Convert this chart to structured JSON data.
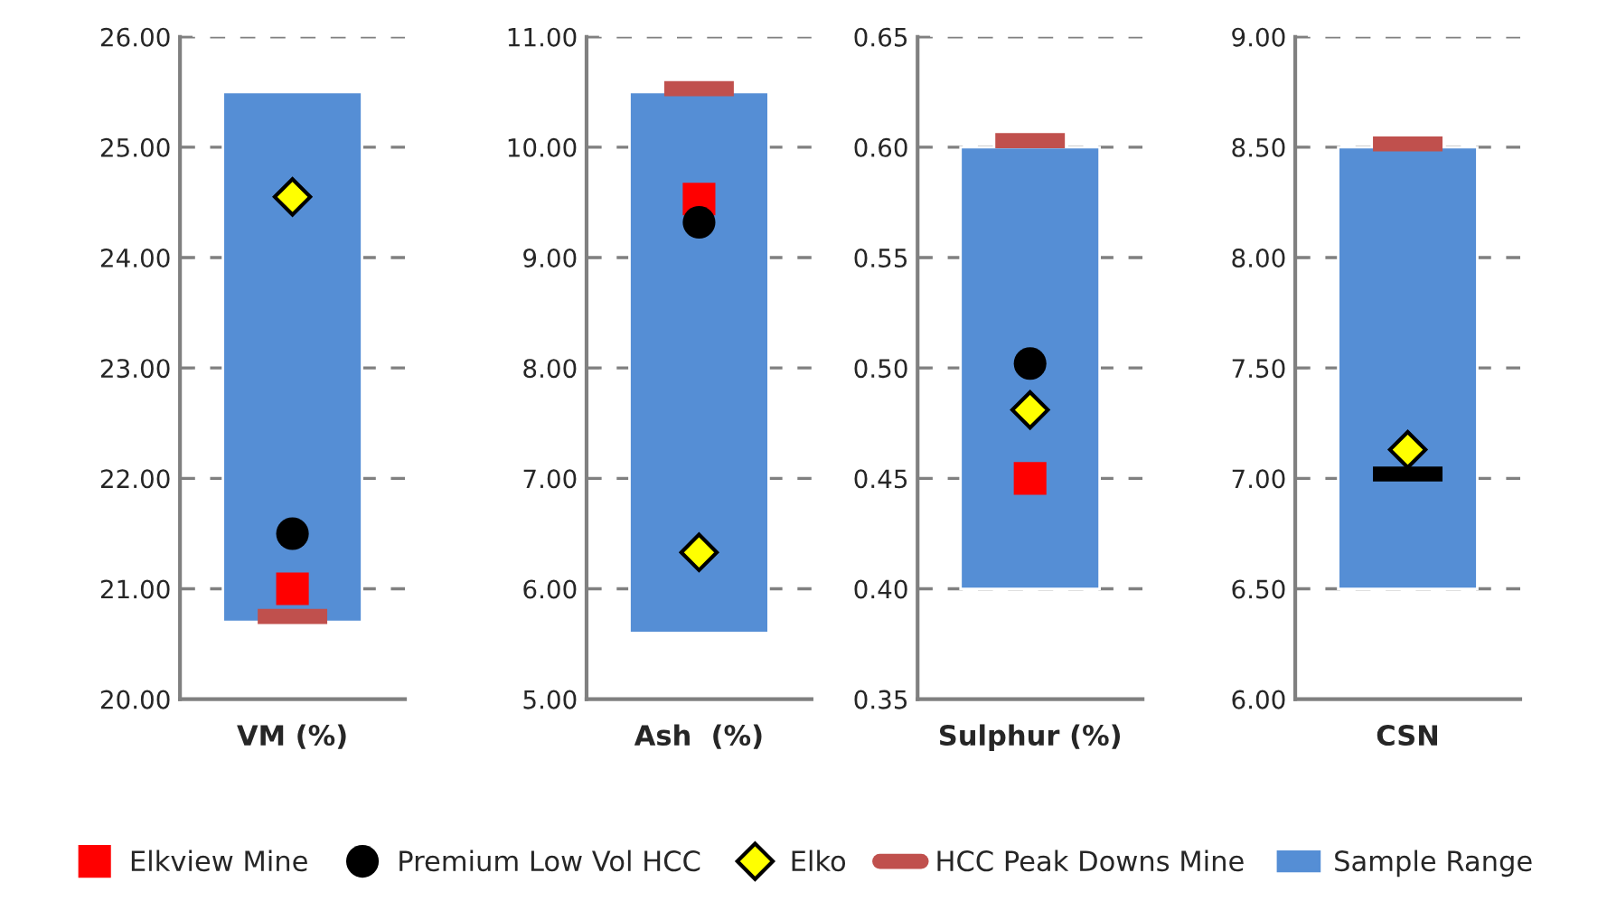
{
  "chart_data": [
    {
      "type": "bar",
      "categories": [
        "VM (%)"
      ],
      "ylim": [
        20,
        26
      ],
      "yticks": [
        {
          "value": 20,
          "label": "20.00"
        },
        {
          "value": 21,
          "label": "21.00"
        },
        {
          "value": 22,
          "label": "22.00"
        },
        {
          "value": 23,
          "label": "23.00"
        },
        {
          "value": 24,
          "label": "24.00"
        },
        {
          "value": 25,
          "label": "25.00"
        },
        {
          "value": 26,
          "label": "26.00"
        }
      ],
      "grid": "y",
      "legend": "bottom",
      "series": [
        {
          "name": "Sample Range",
          "color": "#558ed5",
          "base": [
            20.7
          ],
          "values": [
            4.8
          ]
        },
        {
          "name": "Elkview Mine",
          "type": "scatter",
          "marker": "square",
          "color": "#ff0000",
          "x": [
            "VM (%)"
          ],
          "values": [
            21.0
          ]
        },
        {
          "name": "Premium Low Vol HCC",
          "type": "scatter",
          "marker": "circle",
          "color": "#000000",
          "x": [
            "VM (%)"
          ],
          "values": [
            21.5
          ]
        },
        {
          "name": "Elko",
          "type": "scatter",
          "marker": "diamond",
          "color": "#ffff00",
          "x": [
            "VM (%)"
          ],
          "values": [
            24.55
          ]
        }
      ],
      "ref_lines": [
        {
          "axis": "y",
          "value": 20.75,
          "label": "HCC Peak Downs Mine",
          "color": "#c0504d"
        }
      ]
    },
    {
      "type": "bar",
      "categories": [
        "Ash  (%)"
      ],
      "ylim": [
        5,
        11
      ],
      "yticks": [
        {
          "value": 5,
          "label": "5.00"
        },
        {
          "value": 6,
          "label": "6.00"
        },
        {
          "value": 7,
          "label": "7.00"
        },
        {
          "value": 8,
          "label": "8.00"
        },
        {
          "value": 9,
          "label": "9.00"
        },
        {
          "value": 10,
          "label": "10.00"
        },
        {
          "value": 11,
          "label": "11.00"
        }
      ],
      "grid": "y",
      "series": [
        {
          "color": "#558ed5",
          "base": [
            5.6
          ],
          "values": [
            4.9
          ]
        },
        {
          "type": "scatter",
          "marker": "square",
          "color": "#ff0000",
          "x": [
            "Ash  (%)"
          ],
          "values": [
            9.53
          ]
        },
        {
          "type": "scatter",
          "marker": "circle",
          "color": "#000000",
          "x": [
            "Ash  (%)"
          ],
          "values": [
            9.32
          ]
        },
        {
          "type": "scatter",
          "marker": "diamond",
          "color": "#ffff00",
          "x": [
            "Ash  (%)"
          ],
          "values": [
            6.33
          ]
        }
      ],
      "ref_lines": [
        {
          "axis": "y",
          "value": 10.53,
          "color": "#c0504d"
        }
      ]
    },
    {
      "type": "bar",
      "categories": [
        "Sulphur (%)"
      ],
      "ylim": [
        0.35,
        0.65
      ],
      "yticks": [
        {
          "value": 0.35,
          "label": "0.35"
        },
        {
          "value": 0.4,
          "label": "0.40"
        },
        {
          "value": 0.45,
          "label": "0.45"
        },
        {
          "value": 0.5,
          "label": "0.50"
        },
        {
          "value": 0.55,
          "label": "0.55"
        },
        {
          "value": 0.6,
          "label": "0.60"
        },
        {
          "value": 0.65,
          "label": "0.65"
        }
      ],
      "grid": "y",
      "series": [
        {
          "color": "#558ed5",
          "base": [
            0.4
          ],
          "values": [
            0.2
          ]
        },
        {
          "type": "scatter",
          "marker": "square",
          "color": "#ff0000",
          "x": [
            "Sulphur (%)"
          ],
          "values": [
            0.45
          ]
        },
        {
          "type": "scatter",
          "marker": "circle",
          "color": "#000000",
          "x": [
            "Sulphur (%)"
          ],
          "values": [
            0.502
          ]
        },
        {
          "type": "scatter",
          "marker": "diamond",
          "color": "#ffff00",
          "x": [
            "Sulphur (%)"
          ],
          "values": [
            0.481
          ]
        }
      ],
      "ref_lines": [
        {
          "axis": "y",
          "value": 0.603,
          "color": "#c0504d"
        }
      ]
    },
    {
      "type": "bar",
      "categories": [
        "CSN"
      ],
      "ylim": [
        6,
        9
      ],
      "yticks": [
        {
          "value": 6,
          "label": "6.00"
        },
        {
          "value": 6.5,
          "label": "6.50"
        },
        {
          "value": 7,
          "label": "7.00"
        },
        {
          "value": 7.5,
          "label": "7.50"
        },
        {
          "value": 8,
          "label": "8.00"
        },
        {
          "value": 8.5,
          "label": "8.50"
        },
        {
          "value": 9,
          "label": "9.00"
        }
      ],
      "grid": "y",
      "series": [
        {
          "color": "#558ed5",
          "base": [
            6.5
          ],
          "values": [
            2.0
          ]
        },
        {
          "type": "scatter",
          "marker": "diamond",
          "color": "#ffff00",
          "x": [
            "CSN"
          ],
          "values": [
            7.13
          ]
        }
      ],
      "ref_lines": [
        {
          "axis": "y",
          "value": 8.515,
          "color": "#c0504d"
        },
        {
          "axis": "y",
          "value": 7.02,
          "color": "#000000"
        }
      ]
    }
  ]
}
